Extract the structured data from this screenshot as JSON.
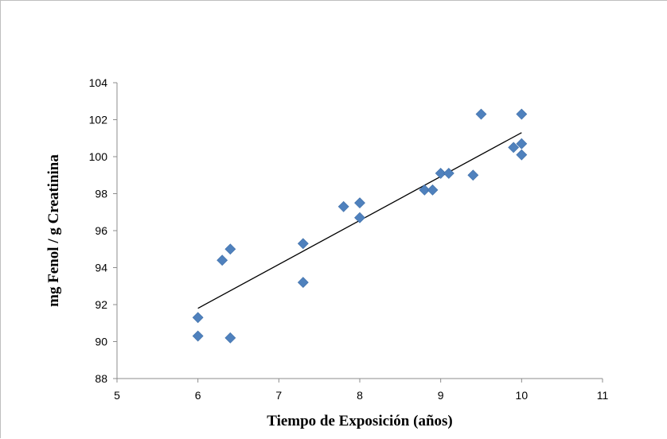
{
  "chart_data": {
    "type": "scatter",
    "title": "",
    "xlabel": "Tiempo de Exposición (años)",
    "ylabel": "mg Fenol / g Creatinina",
    "xlim": [
      5,
      11
    ],
    "ylim": [
      88,
      104
    ],
    "xticks": [
      5,
      6,
      7,
      8,
      9,
      10,
      11
    ],
    "yticks": [
      88,
      90,
      92,
      94,
      96,
      98,
      100,
      102,
      104
    ],
    "grid": false,
    "legend": "none",
    "marker": "diamond",
    "colors": {
      "marker": "#4F81BD",
      "trendline": "#000000"
    },
    "series": [
      {
        "points": [
          [
            6.0,
            91.3
          ],
          [
            6.0,
            90.3
          ],
          [
            6.3,
            94.4
          ],
          [
            6.4,
            95.0
          ],
          [
            6.4,
            90.2
          ],
          [
            7.3,
            95.3
          ],
          [
            7.3,
            93.2
          ],
          [
            7.8,
            97.3
          ],
          [
            8.0,
            97.5
          ],
          [
            8.0,
            96.7
          ],
          [
            8.8,
            98.2
          ],
          [
            8.9,
            98.2
          ],
          [
            9.0,
            99.1
          ],
          [
            9.1,
            99.1
          ],
          [
            9.4,
            99.0
          ],
          [
            9.5,
            102.3
          ],
          [
            9.9,
            100.5
          ],
          [
            10.0,
            102.3
          ],
          [
            10.0,
            100.7
          ],
          [
            10.0,
            100.1
          ]
        ]
      }
    ],
    "trendline": {
      "type": "linear",
      "x": [
        6.0,
        10.0
      ],
      "y": [
        91.8,
        101.3
      ]
    }
  }
}
